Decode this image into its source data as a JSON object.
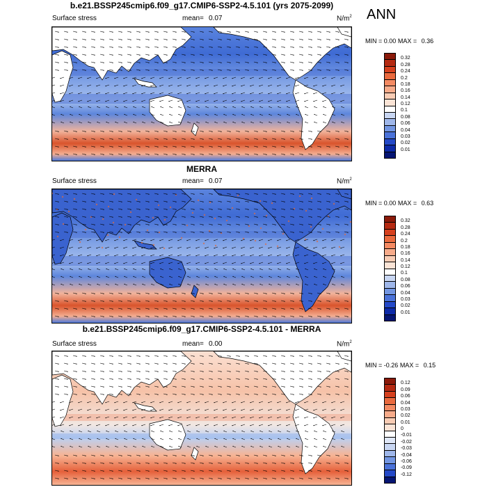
{
  "season": "ANN",
  "panels": [
    {
      "title": "b.e21.BSSP245cmip6.f09_g17.CMIP6-SSP2-4.5.101 (yrs 2075-2099)",
      "variable": "Surface stress",
      "mean_label": "mean=",
      "mean": "0.07",
      "units_base": "N/m",
      "units_exp": "2",
      "min_label": "MIN =",
      "min": "0.00",
      "max_label": "MAX =",
      "max": "0.36",
      "colorbar": {
        "levels": [
          "0.32",
          "0.28",
          "0.24",
          "0.2",
          "0.18",
          "0.16",
          "0.14",
          "0.12",
          "0.1",
          "0.08",
          "0.06",
          "0.04",
          "0.03",
          "0.02",
          "0.01"
        ],
        "colors": [
          "#8b1a0a",
          "#b52a12",
          "#d6401e",
          "#ea6a3e",
          "#f48a62",
          "#f7ab8a",
          "#f8ccb4",
          "#fbe4d6",
          "#ffffff",
          "#c8d6f2",
          "#9fb7ea",
          "#7396e2",
          "#4a72d9",
          "#2449c8",
          "#0d2aa8",
          "#051573"
        ]
      }
    },
    {
      "title": "MERRA",
      "variable": "Surface stress",
      "mean_label": "mean=",
      "mean": "0.07",
      "units_base": "N/m",
      "units_exp": "2",
      "min_label": "MIN =",
      "min": "0.00",
      "max_label": "MAX =",
      "max": "0.63",
      "colorbar": {
        "levels": [
          "0.32",
          "0.28",
          "0.24",
          "0.2",
          "0.18",
          "0.16",
          "0.14",
          "0.12",
          "0.1",
          "0.08",
          "0.06",
          "0.04",
          "0.03",
          "0.02",
          "0.01"
        ],
        "colors": [
          "#8b1a0a",
          "#b52a12",
          "#d6401e",
          "#ea6a3e",
          "#f48a62",
          "#f7ab8a",
          "#f8ccb4",
          "#fbe4d6",
          "#ffffff",
          "#c8d6f2",
          "#9fb7ea",
          "#7396e2",
          "#4a72d9",
          "#2449c8",
          "#0d2aa8",
          "#051573"
        ]
      }
    },
    {
      "title": "b.e21.BSSP245cmip6.f09_g17.CMIP6-SSP2-4.5.101 - MERRA",
      "variable": "Surface stress",
      "mean_label": "mean=",
      "mean": "0.00",
      "units_base": "N/m",
      "units_exp": "2",
      "min_label": "MIN =",
      "min": "-0.26",
      "max_label": "MAX =",
      "max": "0.15",
      "colorbar": {
        "levels": [
          "0.12",
          "0.09",
          "0.06",
          "0.04",
          "0.03",
          "0.02",
          "0.01",
          "0",
          "-0.01",
          "-0.02",
          "-0.03",
          "-0.04",
          "-0.06",
          "-0.09",
          "-0.12"
        ],
        "colors": [
          "#8b1a0a",
          "#b52a12",
          "#d6401e",
          "#ea6a3e",
          "#f48a62",
          "#f7ab8a",
          "#f8ccb4",
          "#fbe4d6",
          "#ffffff",
          "#dfe7f7",
          "#c8d6f2",
          "#9fb7ea",
          "#7396e2",
          "#4a72d9",
          "#2449c8",
          "#051573"
        ]
      }
    }
  ]
}
